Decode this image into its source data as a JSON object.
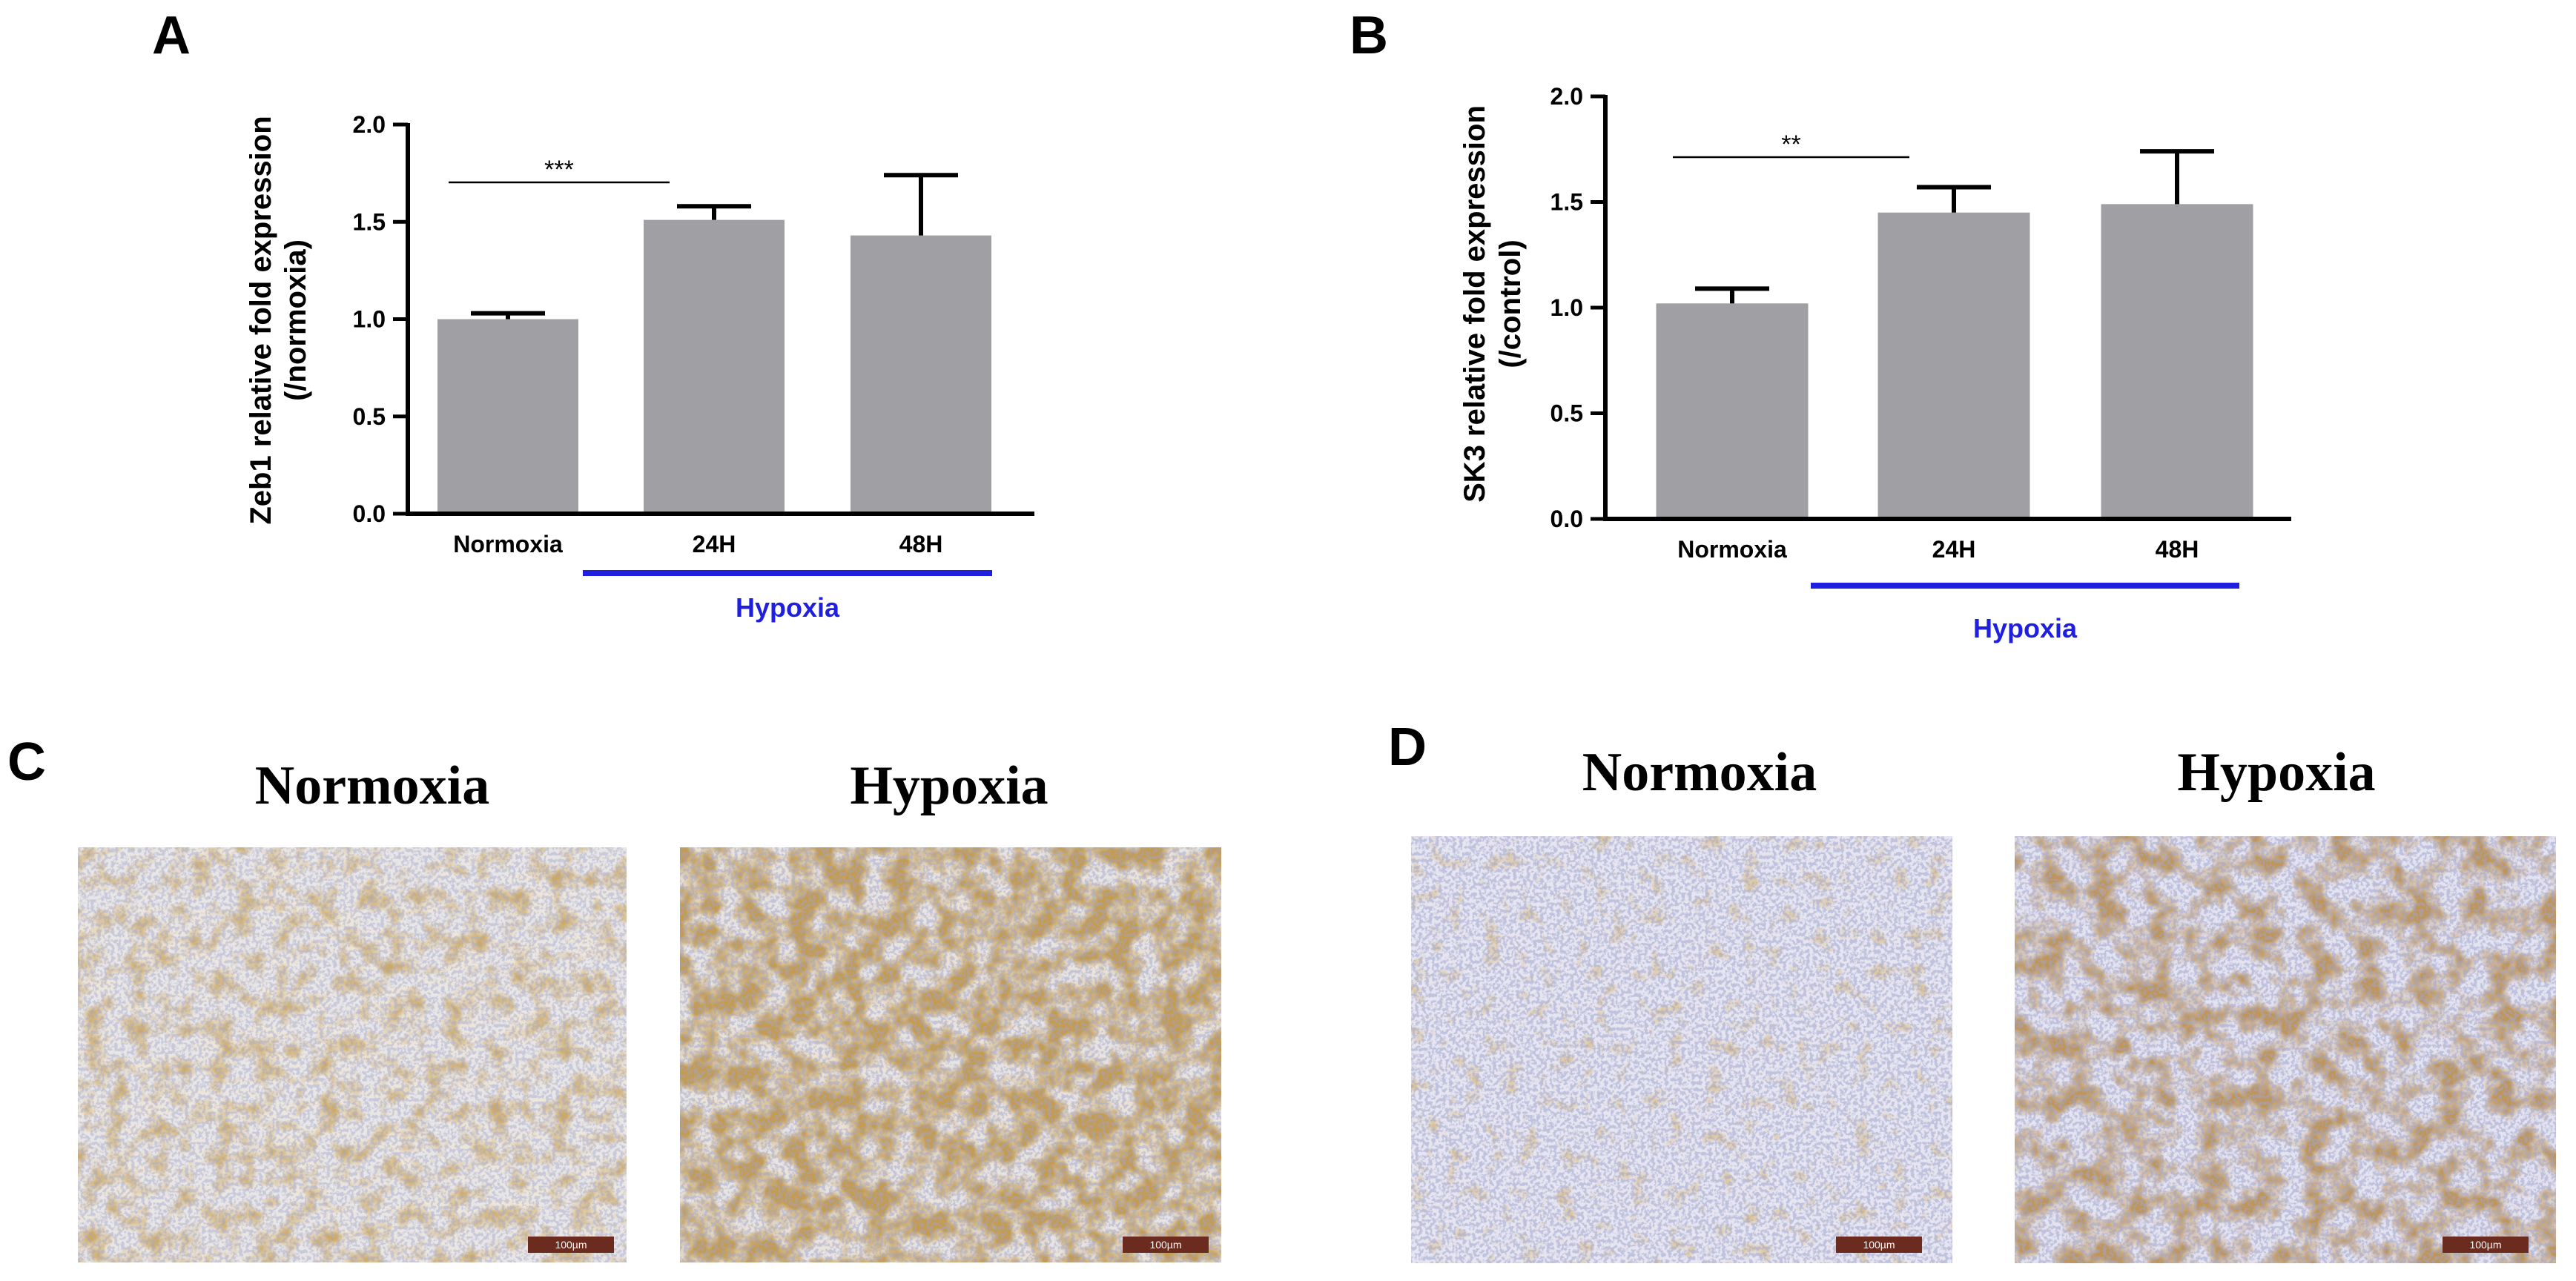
{
  "chart_data": [
    {
      "type": "bar",
      "panel": "A",
      "ylabel_line1": "Zeb1 relative fold expression",
      "ylabel_line2": "(/normoxia)",
      "categories": [
        "Normoxia",
        "24H",
        "48H"
      ],
      "values": [
        1.0,
        1.51,
        1.43
      ],
      "errors": [
        0.03,
        0.07,
        0.31
      ],
      "ylim": [
        0,
        2.0
      ],
      "yticks": [
        "0.0",
        "0.5",
        "1.0",
        "1.5",
        "2.0"
      ],
      "bar_color": "#a0a0a4",
      "significance": {
        "from": 0,
        "to": 1,
        "label": "***"
      },
      "group_label": "Hypoxia",
      "group_color": "#1f1fe0"
    },
    {
      "type": "bar",
      "panel": "B",
      "ylabel_line1": "SK3 relative fold expression",
      "ylabel_line2": "(/control)",
      "categories": [
        "Normoxia",
        "24H",
        "48H"
      ],
      "values": [
        1.02,
        1.45,
        1.49
      ],
      "errors": [
        0.07,
        0.12,
        0.25
      ],
      "ylim": [
        0,
        2.0
      ],
      "yticks": [
        "0.0",
        "0.5",
        "1.0",
        "1.5",
        "2.0"
      ],
      "bar_color": "#a0a0a4",
      "significance": {
        "from": 0,
        "to": 1,
        "label": "**"
      },
      "group_label": "Hypoxia",
      "group_color": "#1f1fe0"
    }
  ],
  "panels": {
    "c": {
      "letter": "C",
      "left_title": "Normoxia",
      "right_title": "Hypoxia",
      "scale_bar": "100µm"
    },
    "d": {
      "letter": "D",
      "left_title": "Normoxia",
      "right_title": "Hypoxia",
      "scale_bar": "100µm"
    }
  }
}
